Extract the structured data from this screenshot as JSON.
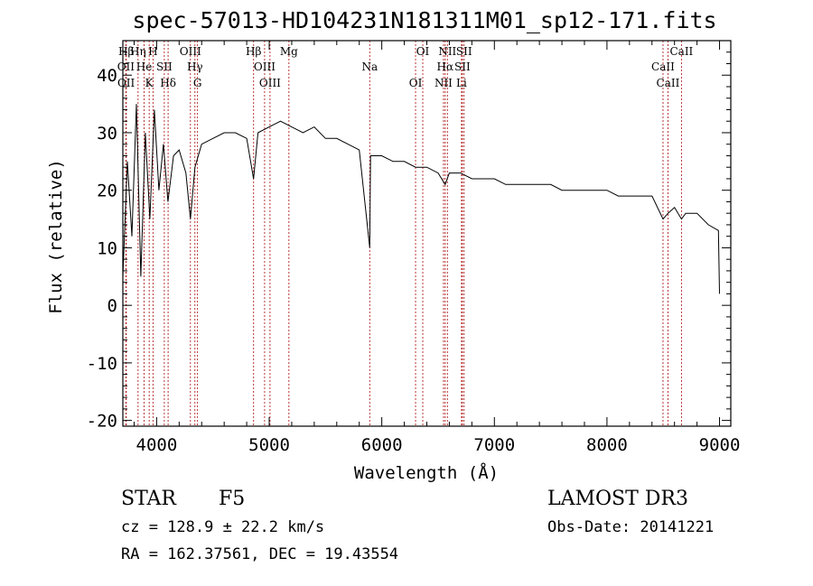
{
  "chart_data": {
    "type": "line",
    "title": "spec-57013-HD104231N181311M01_sp12-171.fits",
    "xlabel": "Wavelength (Å)",
    "ylabel": "Flux (relative)",
    "xlim": [
      3700,
      9100
    ],
    "ylim": [
      -21,
      46
    ],
    "xticks": [
      4000,
      5000,
      6000,
      7000,
      8000,
      9000
    ],
    "yticks": [
      -20,
      -10,
      0,
      10,
      20,
      30,
      40
    ],
    "series": [
      {
        "name": "spectrum",
        "color": "#000000",
        "x": [
          3700,
          3740,
          3780,
          3820,
          3860,
          3900,
          3940,
          3980,
          4020,
          4060,
          4100,
          4150,
          4200,
          4260,
          4300,
          4340,
          4400,
          4500,
          4600,
          4700,
          4800,
          4861,
          4900,
          5000,
          5100,
          5200,
          5300,
          5400,
          5500,
          5600,
          5700,
          5800,
          5893,
          5900,
          6000,
          6100,
          6200,
          6300,
          6400,
          6500,
          6563,
          6600,
          6700,
          6800,
          6900,
          7000,
          7100,
          7200,
          7300,
          7400,
          7500,
          7600,
          7700,
          7800,
          7900,
          8000,
          8100,
          8200,
          8300,
          8400,
          8498,
          8542,
          8600,
          8662,
          8700,
          8800,
          8900,
          8990,
          9000
        ],
        "y": [
          5,
          25,
          12,
          35,
          5,
          30,
          15,
          34,
          20,
          28,
          18,
          26,
          27,
          23,
          15,
          24,
          28,
          29,
          30,
          30,
          29,
          22,
          30,
          31,
          32,
          31,
          30,
          31,
          29,
          29,
          28,
          27,
          10,
          26,
          26,
          25,
          25,
          24,
          24,
          23,
          21,
          23,
          23,
          22,
          22,
          22,
          21,
          21,
          21,
          21,
          21,
          20,
          20,
          20,
          20,
          20,
          19,
          19,
          19,
          19,
          15,
          16,
          17,
          15,
          16,
          16,
          14,
          13,
          2
        ]
      }
    ],
    "spectral_lines": [
      {
        "label": "Hβ",
        "x": 3730
      },
      {
        "label": "OII",
        "x": 3727
      },
      {
        "label": "OII",
        "x": 3729
      },
      {
        "label": "Hη",
        "x": 3835
      },
      {
        "label": "He",
        "x": 3889
      },
      {
        "label": "K",
        "x": 3934
      },
      {
        "label": "H",
        "x": 3968
      },
      {
        "label": "SII",
        "x": 4068
      },
      {
        "label": "Hδ",
        "x": 4102
      },
      {
        "label": "OIII",
        "x": 4300
      },
      {
        "label": "Hγ",
        "x": 4340
      },
      {
        "label": "G",
        "x": 4363
      },
      {
        "label": "Hβ",
        "x": 4861
      },
      {
        "label": "OIII",
        "x": 4959
      },
      {
        "label": "OIII",
        "x": 5007
      },
      {
        "label": "Mg",
        "x": 5175
      },
      {
        "label": "Na",
        "x": 5893
      },
      {
        "label": "OI",
        "x": 6300
      },
      {
        "label": "OI",
        "x": 6364
      },
      {
        "label": "Hα",
        "x": 6563
      },
      {
        "label": "NII",
        "x": 6548
      },
      {
        "label": "NII",
        "x": 6583
      },
      {
        "label": "SII",
        "x": 6716
      },
      {
        "label": "Li",
        "x": 6708
      },
      {
        "label": "SII",
        "x": 6731
      },
      {
        "label": "CaII",
        "x": 8498
      },
      {
        "label": "CaII",
        "x": 8542
      },
      {
        "label": "CaII",
        "x": 8662
      }
    ]
  },
  "info": {
    "object_class": "STAR",
    "subclass": "F5",
    "survey": "LAMOST DR3",
    "cz": "cz = 128.9 ± 22.2 km/s",
    "obs_date": "Obs-Date: 20141221",
    "coords": "RA = 162.37561, DEC =  19.43554"
  },
  "colors": {
    "line_marker": "#b22222",
    "spectrum": "#000000"
  }
}
